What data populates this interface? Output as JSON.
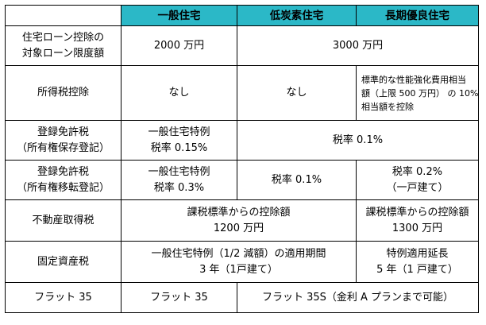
{
  "header": {
    "col1": "一般住宅",
    "col2": "低炭素住宅",
    "col3": "長期優良住宅"
  },
  "rows": {
    "loan": {
      "label": [
        "住宅ローン控除の",
        "対象ローン限度額"
      ],
      "general": "2000 万円",
      "merged": "3000 万円"
    },
    "income_tax": {
      "label": "所得税控除",
      "general": "なし",
      "low_carbon": "なし",
      "long_term": [
        "標準的な性能強化費用相当",
        "額（上限 500 万円） の 10%",
        "相当額を控除"
      ]
    },
    "reg_preservation": {
      "label": [
        "登録免許税",
        "（所有権保存登記）"
      ],
      "general": [
        "一般住宅特例",
        "税率 0.15%"
      ],
      "merged": "税率 0.1%"
    },
    "reg_transfer": {
      "label": [
        "登録免許税",
        "（所有権移転登記）"
      ],
      "general": [
        "一般住宅特例",
        "税率 0.3%"
      ],
      "low_carbon": "税率 0.1%",
      "long_term": [
        "税率 0.2%",
        "（一戸建て）"
      ]
    },
    "acquisition": {
      "label": "不動産取得税",
      "merged": [
        "課税標準からの控除額",
        "1200 万円"
      ],
      "long_term": [
        "課税標準からの控除額",
        "1300 万円"
      ]
    },
    "property_tax": {
      "label": "固定資産税",
      "merged": [
        "一般住宅特例（1/2 減額）の適用期間",
        "3 年（1戸建て）"
      ],
      "long_term": [
        "特例適用延長",
        "5 年（1 戸建て）"
      ]
    },
    "flat35": {
      "label": "フラット 35",
      "general": "フラット 35",
      "merged": "フラット 35S（金利 A プランまで可能）"
    }
  }
}
